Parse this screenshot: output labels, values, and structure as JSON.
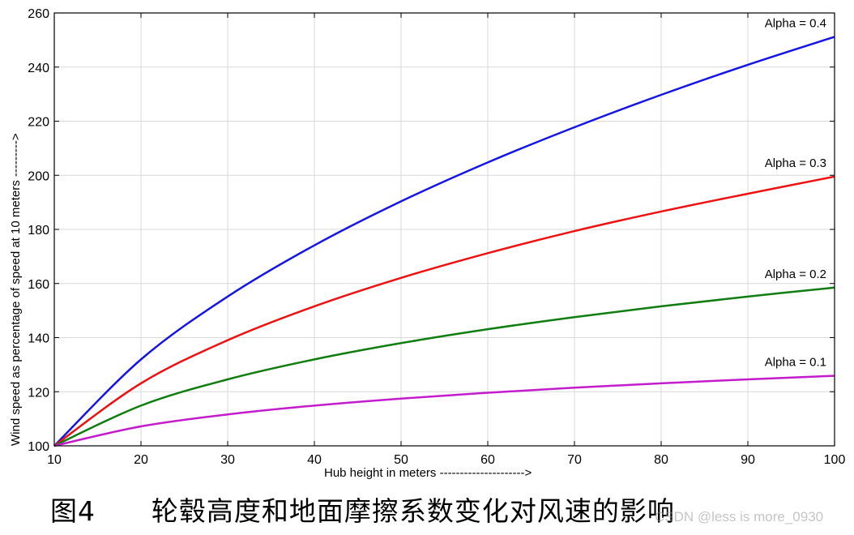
{
  "chart_data": {
    "type": "line",
    "xlabel": "Hub height in meters --------------------->",
    "ylabel": "Wind speed as percentage of speed at 10 meters --------->",
    "xlim": [
      10,
      100
    ],
    "ylim": [
      100,
      260
    ],
    "xticks": [
      10,
      20,
      30,
      40,
      50,
      60,
      70,
      80,
      90,
      100
    ],
    "yticks": [
      100,
      120,
      140,
      160,
      180,
      200,
      220,
      240,
      260
    ],
    "grid": true,
    "x": [
      10,
      20,
      30,
      40,
      50,
      60,
      70,
      80,
      90,
      100
    ],
    "series": [
      {
        "name": "Alpha = 0.4",
        "color": "#1515e6",
        "values": [
          100,
          131.95,
          155.18,
          174.11,
          190.37,
          204.76,
          217.76,
          229.74,
          240.86,
          251.19
        ]
      },
      {
        "name": "Alpha = 0.3",
        "color": "#ee1111",
        "values": [
          100,
          123.11,
          139.04,
          151.57,
          162.09,
          171.22,
          179.39,
          186.61,
          193.19,
          199.53
        ]
      },
      {
        "name": "Alpha = 0.2",
        "color": "#0f7d0f",
        "values": [
          100,
          114.87,
          124.57,
          131.95,
          137.97,
          143.1,
          147.58,
          151.57,
          155.18,
          158.49
        ]
      },
      {
        "name": "Alpha = 0.1",
        "color": "#c21ccc",
        "values": [
          100,
          107.18,
          111.61,
          114.87,
          117.46,
          119.62,
          121.48,
          123.11,
          124.57,
          125.89
        ]
      }
    ]
  },
  "caption": "图4      轮毂高度和地面摩擦系数变化对风速的影响",
  "watermark": "CSDN @less is more_0930"
}
